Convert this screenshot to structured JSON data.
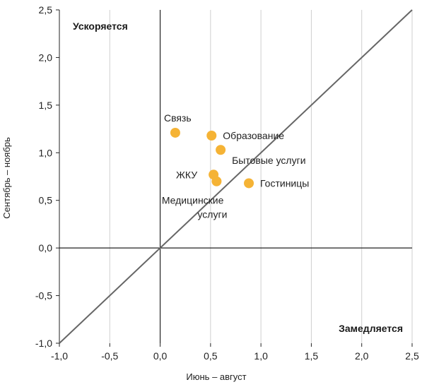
{
  "chart_data": {
    "type": "scatter",
    "xlabel": "Июнь – август",
    "ylabel": "Сентябрь – ноябрь",
    "xlim": [
      -1.0,
      2.5
    ],
    "ylim": [
      -1.0,
      2.5
    ],
    "x_ticks": [
      -1.0,
      -0.5,
      0.0,
      0.5,
      1.0,
      1.5,
      2.0,
      2.5
    ],
    "y_ticks": [
      -1.0,
      -0.5,
      0.0,
      0.5,
      1.0,
      1.5,
      2.0,
      2.5
    ],
    "x_tick_labels": [
      "-1,0",
      "-0,5",
      "0,0",
      "0,5",
      "1,0",
      "1,5",
      "2,0",
      "2,5"
    ],
    "y_tick_labels": [
      "-1,0",
      "-0,5",
      "0,0",
      "0,5",
      "1,0",
      "1,5",
      "2,0",
      "2,5"
    ],
    "grid": "vertical",
    "diagonal_line": true,
    "colors": {
      "points": "#F5B335",
      "diagonal": "#666666",
      "axes": "#222222",
      "grid": "#cfcfcf"
    },
    "annotations": {
      "top_left": "Ускоряется",
      "bottom_right": "Замедляется"
    },
    "points": [
      {
        "label": "Связь",
        "x": 0.15,
        "y": 1.21
      },
      {
        "label": "Образование",
        "x": 0.51,
        "y": 1.18
      },
      {
        "label": "Бытовые услуги",
        "x": 0.6,
        "y": 1.03
      },
      {
        "label": "ЖКУ",
        "x": 0.53,
        "y": 0.77
      },
      {
        "label": "Медицинские услуги",
        "x": 0.56,
        "y": 0.7
      },
      {
        "label": "Гостиницы",
        "x": 0.88,
        "y": 0.68
      }
    ]
  }
}
